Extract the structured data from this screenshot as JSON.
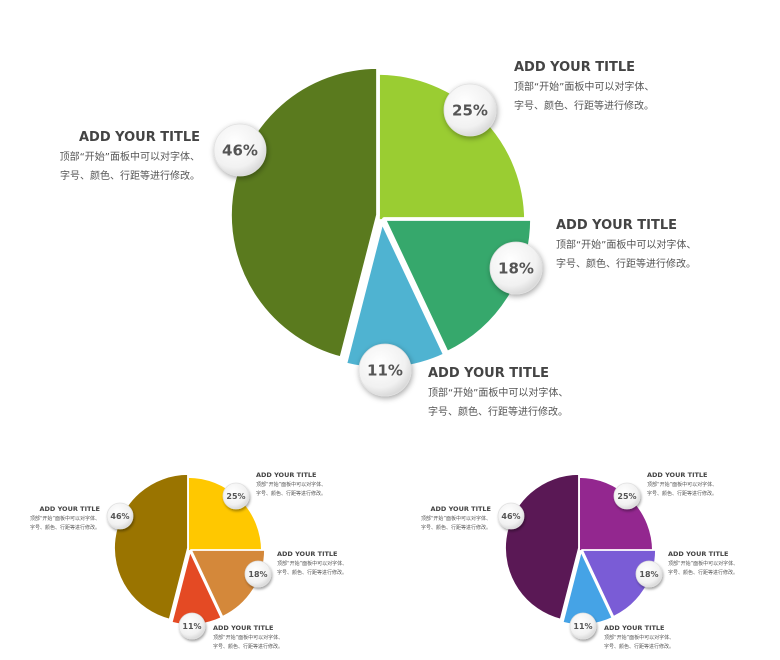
{
  "chart_data": [
    {
      "type": "pie",
      "name": "main-chart",
      "slices": [
        {
          "label": "25%",
          "value": 25,
          "color": "#9acd32"
        },
        {
          "label": "18%",
          "value": 18,
          "color": "#36a86c"
        },
        {
          "label": "11%",
          "value": 11,
          "color": "#4fb3d1"
        },
        {
          "label": "46%",
          "value": 46,
          "color": "#5a7a1e"
        }
      ],
      "annotations": [
        {
          "title": "ADD YOUR TITLE",
          "line1": "顶部“开始”面板中可以对字体、",
          "line2": "字号、颜色、行距等进行修改。"
        },
        {
          "title": "ADD YOUR TITLE",
          "line1": "顶部“开始”面板中可以对字体、",
          "line2": "字号、颜色、行距等进行修改。"
        },
        {
          "title": "ADD YOUR TITLE",
          "line1": "顶部“开始”面板中可以对字体、",
          "line2": "字号、颜色、行距等进行修改。"
        },
        {
          "title": "ADD YOUR TITLE",
          "line1": "顶部“开始”面板中可以对字体、",
          "line2": "字号、颜色、行距等进行修改。"
        }
      ]
    },
    {
      "type": "pie",
      "name": "orange-chart",
      "slices": [
        {
          "label": "25%",
          "value": 25,
          "color": "#ffc800"
        },
        {
          "label": "18%",
          "value": 18,
          "color": "#d4883a"
        },
        {
          "label": "11%",
          "value": 11,
          "color": "#e44a24"
        },
        {
          "label": "46%",
          "value": 46,
          "color": "#9a7400"
        }
      ],
      "annotations": [
        {
          "title": "ADD YOUR TITLE",
          "line1": "顶部“开始”面板中可以对字体、",
          "line2": "字号、颜色、行距等进行修改。"
        },
        {
          "title": "ADD YOUR TITLE",
          "line1": "顶部“开始”面板中可以对字体、",
          "line2": "字号、颜色、行距等进行修改。"
        },
        {
          "title": "ADD YOUR TITLE",
          "line1": "顶部“开始”面板中可以对字体、",
          "line2": "字号、颜色、行距等进行修改。"
        },
        {
          "title": "ADD YOUR TITLE",
          "line1": "顶部“开始”面板中可以对字体、",
          "line2": "字号、颜色、行距等进行修改。"
        }
      ]
    },
    {
      "type": "pie",
      "name": "purple-chart",
      "slices": [
        {
          "label": "25%",
          "value": 25,
          "color": "#93278f"
        },
        {
          "label": "18%",
          "value": 18,
          "color": "#7a5cd6"
        },
        {
          "label": "11%",
          "value": 11,
          "color": "#45a3e6"
        },
        {
          "label": "46%",
          "value": 46,
          "color": "#5a1855"
        }
      ],
      "annotations": [
        {
          "title": "ADD YOUR TITLE",
          "line1": "顶部“开始”面板中可以对字体、",
          "line2": "字号、颜色、行距等进行修改。"
        },
        {
          "title": "ADD YOUR TITLE",
          "line1": "顶部“开始”面板中可以对字体、",
          "line2": "字号、颜色、行距等进行修改。"
        },
        {
          "title": "ADD YOUR TITLE",
          "line1": "顶部“开始”面板中可以对字体、",
          "line2": "字号、颜色、行距等进行修改。"
        },
        {
          "title": "ADD YOUR TITLE",
          "line1": "顶部“开始”面板中可以对字体、",
          "line2": "字号、颜色、行距等进行修改。"
        }
      ]
    }
  ]
}
